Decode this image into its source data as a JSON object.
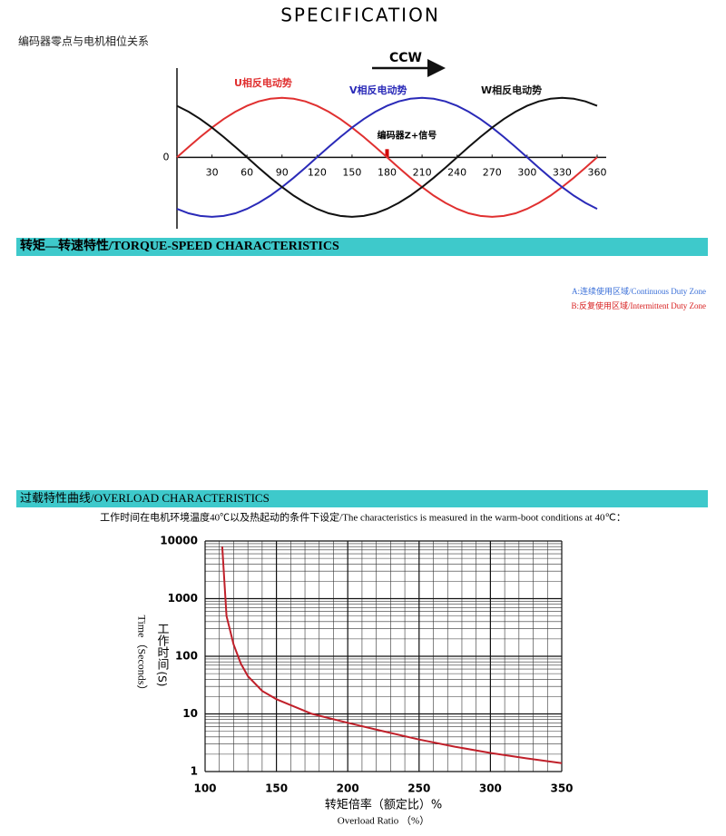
{
  "title": "SPECIFICATION",
  "phase_section": {
    "heading": "编码器零点与电机相位关系"
  },
  "torque_section": {
    "heading": "转矩—转速特性/TORQUE-SPEED  CHARACTERISTICS",
    "legend": [
      {
        "label": "A:连续使用区域/Continuous  Duty  Zone",
        "color": "#3a6fd8"
      },
      {
        "label": "B:反复使用区域/Intermittent  Duty  Zone",
        "color": "#d82020"
      }
    ]
  },
  "overload_section": {
    "heading": "过载特性曲线/OVERLOAD  CHARACTERISTICS",
    "note": "工作时间在电机环境温度40℃以及热起动的条件下设定/The characteristics is measured in the warm-boot conditions at 40℃："
  },
  "chart_data": [
    {
      "type": "line",
      "direction": "CCW",
      "marker": {
        "label": "编码器Z+信号",
        "x": 180,
        "color": "#d00000"
      },
      "x": [
        0,
        10,
        20,
        30,
        40,
        50,
        60,
        70,
        80,
        90,
        100,
        110,
        120,
        130,
        140,
        150,
        160,
        170,
        180,
        190,
        200,
        210,
        220,
        230,
        240,
        250,
        260,
        270,
        280,
        290,
        300,
        310,
        320,
        330,
        340,
        350,
        360
      ],
      "xlim": [
        0,
        360
      ],
      "xticks": [
        30,
        60,
        90,
        120,
        150,
        180,
        210,
        240,
        270,
        300,
        330,
        360
      ],
      "ylim": [
        -1.2,
        1.5
      ],
      "yticks": [
        0
      ],
      "series": [
        {
          "name": "U相反电动势",
          "color": "#e03030",
          "values": [
            0,
            0.174,
            0.342,
            0.5,
            0.643,
            0.766,
            0.866,
            0.94,
            0.985,
            1,
            0.985,
            0.94,
            0.866,
            0.766,
            0.643,
            0.5,
            0.342,
            0.174,
            0,
            -0.174,
            -0.342,
            -0.5,
            -0.643,
            -0.766,
            -0.866,
            -0.94,
            -0.985,
            -1,
            -0.985,
            -0.94,
            -0.866,
            -0.766,
            -0.643,
            -0.5,
            -0.342,
            -0.174,
            0
          ]
        },
        {
          "name": "V相反电动势",
          "color": "#2a2ab8",
          "values": [
            -0.866,
            -0.94,
            -0.985,
            -1,
            -0.985,
            -0.94,
            -0.866,
            -0.766,
            -0.643,
            -0.5,
            -0.342,
            -0.174,
            0,
            0.174,
            0.342,
            0.5,
            0.643,
            0.766,
            0.866,
            0.94,
            0.985,
            1,
            0.985,
            0.94,
            0.866,
            0.766,
            0.643,
            0.5,
            0.342,
            0.174,
            0,
            -0.174,
            -0.342,
            -0.5,
            -0.643,
            -0.766,
            -0.866
          ]
        },
        {
          "name": "W相反电动势",
          "color": "#111111",
          "values": [
            0.866,
            0.766,
            0.643,
            0.5,
            0.342,
            0.174,
            0,
            -0.174,
            -0.342,
            -0.5,
            -0.643,
            -0.766,
            -0.866,
            -0.94,
            -0.985,
            -1,
            -0.985,
            -0.94,
            -0.866,
            -0.766,
            -0.643,
            -0.5,
            -0.342,
            -0.174,
            0,
            0.174,
            0.342,
            0.5,
            0.643,
            0.766,
            0.866,
            0.94,
            0.985,
            1,
            0.985,
            0.94,
            0.866
          ]
        }
      ]
    },
    {
      "type": "line",
      "log_y": true,
      "grid": true,
      "minor_grid": true,
      "xlabel": "转矩倍率（额定比）%",
      "xlabel_en": "Overload Ratio （%）",
      "ylabel": "Time（Seconds）",
      "ylabel_cn": "工作时间",
      "yunit": "(S)",
      "x": [
        112,
        115,
        120,
        125,
        130,
        140,
        150,
        175,
        200,
        225,
        250,
        275,
        300,
        325,
        350
      ],
      "xlim": [
        100,
        350
      ],
      "xticks": [
        100,
        150,
        200,
        250,
        300,
        350
      ],
      "ylim": [
        1,
        10000
      ],
      "yticks": [
        1,
        10,
        100,
        1000,
        10000
      ],
      "series": [
        {
          "color": "#c0202a",
          "values": [
            8000,
            500,
            160,
            75,
            45,
            25,
            18,
            10,
            7,
            5,
            3.6,
            2.7,
            2.1,
            1.7,
            1.4
          ]
        }
      ]
    }
  ]
}
